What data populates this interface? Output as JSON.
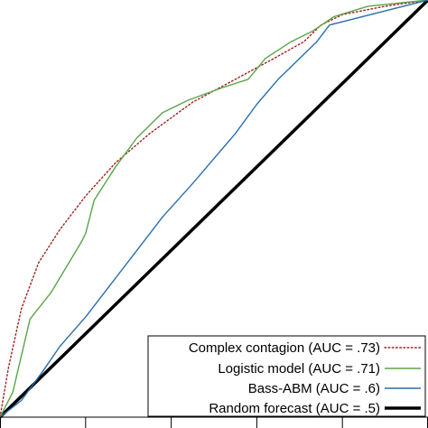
{
  "chart_data": {
    "type": "line",
    "title": "",
    "xlabel": "",
    "ylabel": "",
    "xlim": [
      0,
      1
    ],
    "ylim": [
      0,
      1
    ],
    "x_ticks": [
      0,
      0.2,
      0.4,
      0.6,
      0.8,
      1.0
    ],
    "grid": false,
    "legend_placement": "bottom-right",
    "series": [
      {
        "name": "Complex contagion (AUC = .73)",
        "color": "#a0201e",
        "style": "dotted",
        "points": [
          [
            0,
            0
          ],
          [
            0.02,
            0.12
          ],
          [
            0.05,
            0.26
          ],
          [
            0.09,
            0.37
          ],
          [
            0.14,
            0.45
          ],
          [
            0.2,
            0.53
          ],
          [
            0.27,
            0.61
          ],
          [
            0.35,
            0.68
          ],
          [
            0.45,
            0.755
          ],
          [
            0.55,
            0.81
          ],
          [
            0.64,
            0.86
          ],
          [
            0.71,
            0.9
          ],
          [
            0.75,
            0.94
          ],
          [
            0.8,
            0.965
          ],
          [
            0.9,
            0.985
          ],
          [
            1,
            1
          ]
        ]
      },
      {
        "name": "Logistic model (AUC = .71)",
        "color": "#5aa548",
        "style": "solid",
        "points": [
          [
            0,
            0
          ],
          [
            0.03,
            0.06
          ],
          [
            0.07,
            0.235
          ],
          [
            0.12,
            0.3
          ],
          [
            0.19,
            0.42
          ],
          [
            0.2,
            0.44
          ],
          [
            0.22,
            0.52
          ],
          [
            0.27,
            0.6
          ],
          [
            0.32,
            0.67
          ],
          [
            0.38,
            0.73
          ],
          [
            0.44,
            0.76
          ],
          [
            0.52,
            0.79
          ],
          [
            0.58,
            0.81
          ],
          [
            0.62,
            0.86
          ],
          [
            0.68,
            0.9
          ],
          [
            0.73,
            0.925
          ],
          [
            0.78,
            0.96
          ],
          [
            0.86,
            0.985
          ],
          [
            1,
            1
          ]
        ]
      },
      {
        "name": "Bass-ABM (AUC = .6)",
        "color": "#2a6eac",
        "style": "solid",
        "points": [
          [
            0,
            0
          ],
          [
            0.05,
            0.04
          ],
          [
            0.1,
            0.11
          ],
          [
            0.14,
            0.17
          ],
          [
            0.2,
            0.24
          ],
          [
            0.26,
            0.32
          ],
          [
            0.32,
            0.4
          ],
          [
            0.38,
            0.48
          ],
          [
            0.45,
            0.56
          ],
          [
            0.5,
            0.62
          ],
          [
            0.55,
            0.68
          ],
          [
            0.6,
            0.75
          ],
          [
            0.65,
            0.81
          ],
          [
            0.7,
            0.86
          ],
          [
            0.74,
            0.9
          ],
          [
            0.77,
            0.94
          ],
          [
            1,
            1
          ]
        ]
      },
      {
        "name": "Random forecast (AUC = .5)",
        "color": "#000000",
        "style": "solid",
        "points": [
          [
            0,
            0
          ],
          [
            1,
            1
          ]
        ]
      }
    ]
  }
}
